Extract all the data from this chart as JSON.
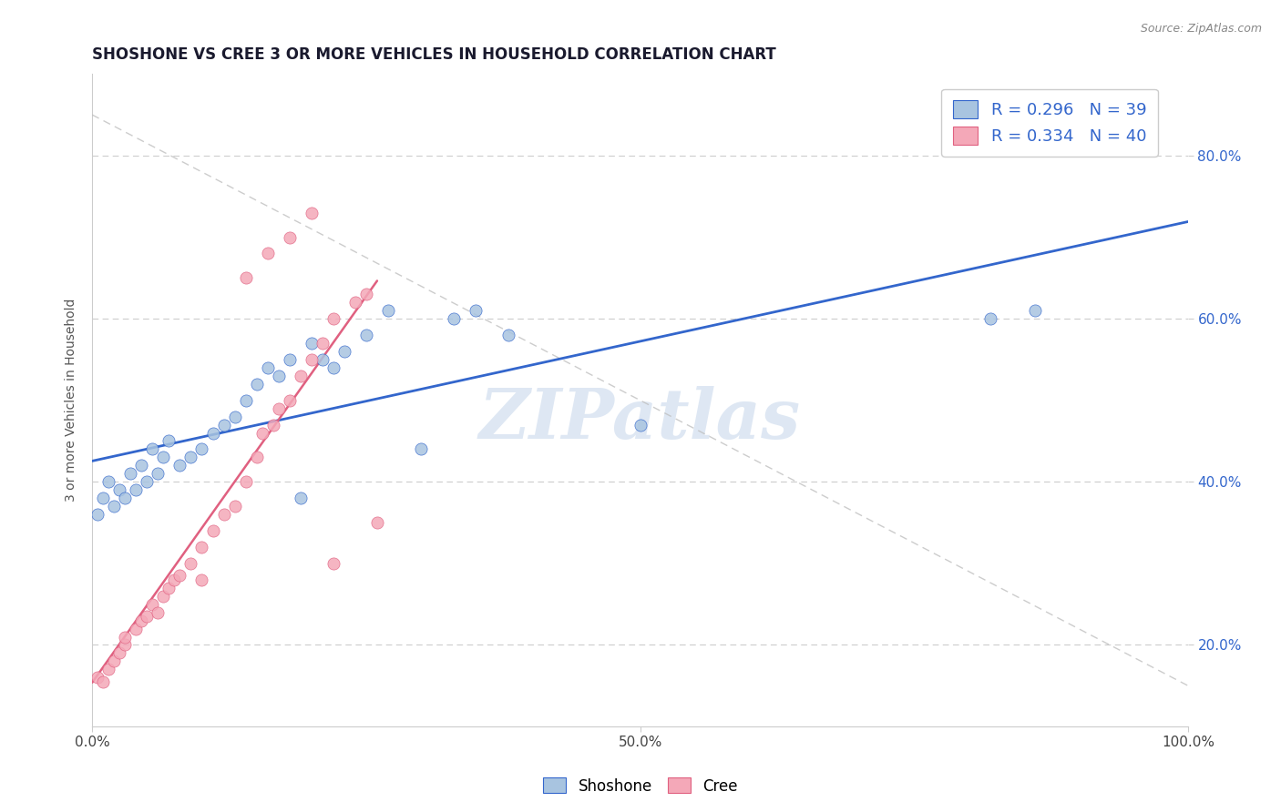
{
  "title": "SHOSHONE VS CREE 3 OR MORE VEHICLES IN HOUSEHOLD CORRELATION CHART",
  "source_text": "Source: ZipAtlas.com",
  "ylabel": "3 or more Vehicles in Household",
  "xlim": [
    0.0,
    1.0
  ],
  "ylim": [
    0.1,
    0.9
  ],
  "xticks": [
    0.0,
    0.1,
    0.2,
    0.3,
    0.4,
    0.5,
    0.6,
    0.7,
    0.8,
    0.9,
    1.0
  ],
  "xticklabels": [
    "0.0%",
    "",
    "",
    "",
    "",
    "50.0%",
    "",
    "",
    "",
    "",
    "100.0%"
  ],
  "yticks": [
    0.2,
    0.4,
    0.6,
    0.8
  ],
  "yticklabels": [
    "20.0%",
    "40.0%",
    "60.0%",
    "80.0%"
  ],
  "shoshone_color": "#a8c4e0",
  "cree_color": "#f4a8b8",
  "shoshone_line_color": "#3366cc",
  "cree_line_color": "#e06080",
  "ref_line_color": "#c0c0c0",
  "R_shoshone": 0.296,
  "N_shoshone": 39,
  "R_cree": 0.334,
  "N_cree": 40,
  "legend_text_color": "#3366cc",
  "watermark": "ZIPatlas",
  "watermark_color": "#c8d8ec",
  "shoshone_x": [
    0.005,
    0.01,
    0.015,
    0.02,
    0.025,
    0.03,
    0.035,
    0.04,
    0.045,
    0.05,
    0.055,
    0.06,
    0.065,
    0.07,
    0.08,
    0.09,
    0.1,
    0.11,
    0.12,
    0.13,
    0.14,
    0.15,
    0.16,
    0.17,
    0.18,
    0.19,
    0.2,
    0.21,
    0.22,
    0.23,
    0.25,
    0.27,
    0.3,
    0.33,
    0.35,
    0.38,
    0.5,
    0.82,
    0.86
  ],
  "shoshone_y": [
    0.36,
    0.38,
    0.4,
    0.37,
    0.39,
    0.38,
    0.41,
    0.39,
    0.42,
    0.4,
    0.44,
    0.41,
    0.43,
    0.45,
    0.42,
    0.43,
    0.44,
    0.46,
    0.47,
    0.48,
    0.5,
    0.52,
    0.54,
    0.53,
    0.55,
    0.38,
    0.57,
    0.55,
    0.54,
    0.56,
    0.58,
    0.61,
    0.44,
    0.6,
    0.61,
    0.58,
    0.47,
    0.6,
    0.61
  ],
  "cree_x": [
    0.005,
    0.01,
    0.015,
    0.02,
    0.025,
    0.03,
    0.03,
    0.04,
    0.045,
    0.05,
    0.055,
    0.06,
    0.065,
    0.07,
    0.075,
    0.08,
    0.09,
    0.1,
    0.11,
    0.12,
    0.13,
    0.14,
    0.15,
    0.155,
    0.165,
    0.17,
    0.18,
    0.19,
    0.2,
    0.21,
    0.22,
    0.24,
    0.25,
    0.26,
    0.14,
    0.16,
    0.18,
    0.2,
    0.22,
    0.1
  ],
  "cree_y": [
    0.16,
    0.155,
    0.17,
    0.18,
    0.19,
    0.2,
    0.21,
    0.22,
    0.23,
    0.235,
    0.25,
    0.24,
    0.26,
    0.27,
    0.28,
    0.285,
    0.3,
    0.32,
    0.34,
    0.36,
    0.37,
    0.4,
    0.43,
    0.46,
    0.47,
    0.49,
    0.5,
    0.53,
    0.55,
    0.57,
    0.6,
    0.62,
    0.63,
    0.35,
    0.65,
    0.68,
    0.7,
    0.73,
    0.3,
    0.28
  ]
}
